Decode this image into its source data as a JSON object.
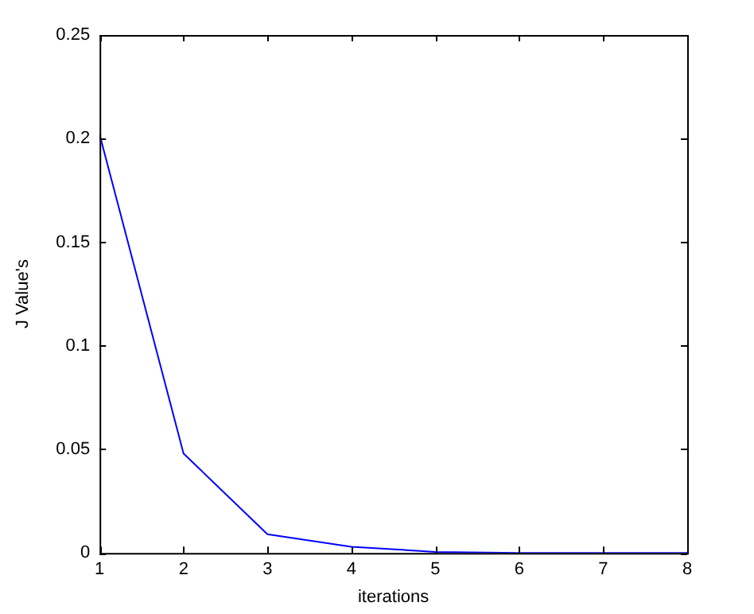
{
  "chart_data": {
    "type": "line",
    "xlabel": "iterations",
    "ylabel": "J Value's",
    "x": [
      1,
      2,
      3,
      4,
      5,
      6,
      7,
      8
    ],
    "series": [
      {
        "color": "#0000ff",
        "values": [
          0.202,
          0.048,
          0.009,
          0.003,
          0.0005,
          0,
          0,
          0
        ]
      }
    ],
    "xlim": [
      1,
      8
    ],
    "xticks": [
      1,
      2,
      3,
      4,
      5,
      6,
      7,
      8
    ],
    "ylim": [
      0,
      0.25
    ],
    "yticks": [
      0,
      0.05,
      0.1,
      0.15,
      0.2,
      0.25
    ],
    "grid": false,
    "legend": false,
    "marker": "none",
    "line_style": "solid"
  }
}
